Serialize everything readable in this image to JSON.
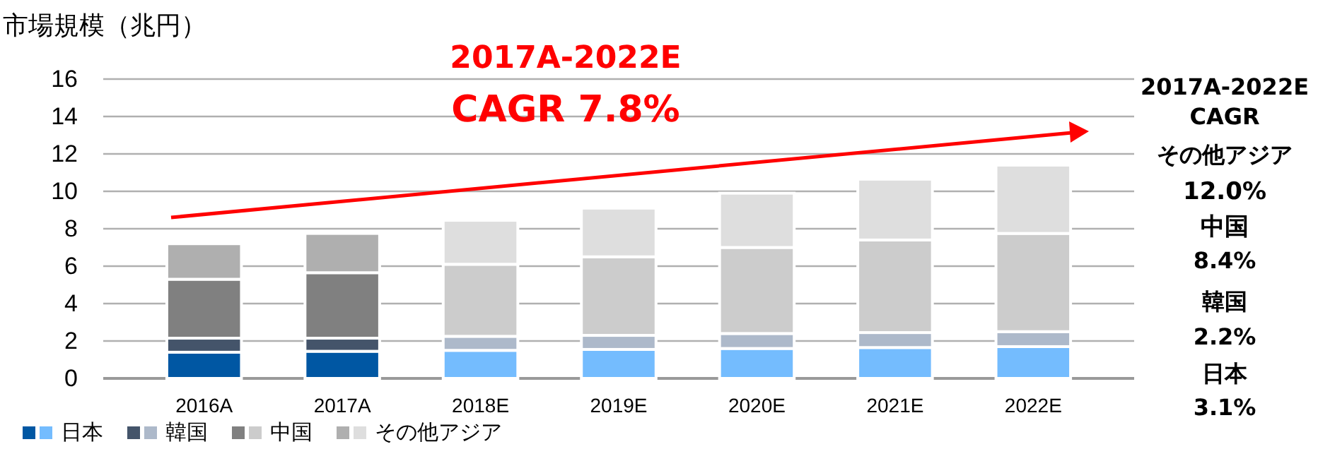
{
  "chart_data": {
    "type": "bar",
    "stacked": true,
    "ylabel": "市場規模（兆円）",
    "categories": [
      "2016A",
      "2017A",
      "2018E",
      "2019E",
      "2020E",
      "2021E",
      "2022E"
    ],
    "series": [
      {
        "name": "日本",
        "colors": [
          "#0057a3",
          "#0057a3",
          "#74bcfe",
          "#74bcfe",
          "#74bcfe",
          "#74bcfe",
          "#74bcfe"
        ],
        "values": [
          1.4,
          1.45,
          1.5,
          1.55,
          1.6,
          1.65,
          1.7
        ]
      },
      {
        "name": "韓国",
        "colors": [
          "#44546a",
          "#44546a",
          "#adb9ca",
          "#adb9ca",
          "#adb9ca",
          "#adb9ca",
          "#adb9ca"
        ],
        "values": [
          0.75,
          0.7,
          0.75,
          0.75,
          0.8,
          0.8,
          0.8
        ]
      },
      {
        "name": "中国",
        "colors": [
          "#808080",
          "#808080",
          "#cccccc",
          "#cccccc",
          "#cccccc",
          "#cccccc",
          "#cccccc"
        ],
        "values": [
          3.15,
          3.5,
          3.85,
          4.2,
          4.6,
          4.95,
          5.25
        ]
      },
      {
        "name": "その他アジア",
        "colors": [
          "#afafaf",
          "#afafaf",
          "#dedede",
          "#dedede",
          "#dedede",
          "#dedede",
          "#dedede"
        ],
        "values": [
          1.9,
          2.1,
          2.35,
          2.6,
          2.9,
          3.25,
          3.65
        ]
      }
    ],
    "ylim": [
      0,
      16
    ],
    "yticks": [
      0,
      2,
      4,
      6,
      8,
      10,
      12,
      14,
      16
    ],
    "grid": "y",
    "legend": "bottom left",
    "annotations": [
      "2017A-2022E",
      "CAGR 7.8%",
      "2017A-2022E",
      "CAGR",
      "その他アジア",
      "12.0%",
      "中国",
      "8.4%",
      "韓国",
      "2.2%",
      "日本",
      "3.1%"
    ]
  }
}
